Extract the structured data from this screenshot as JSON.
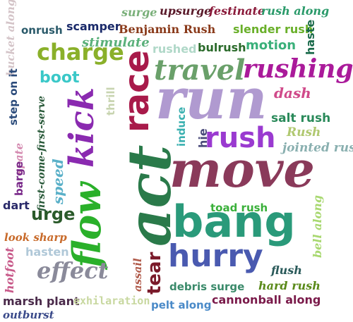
{
  "words": [
    {
      "text": "bucket along",
      "color": "#d4c4c8"
    },
    {
      "text": "surge",
      "color": "#7ab07a"
    },
    {
      "text": "upsurge",
      "color": "#5a1a2a"
    },
    {
      "text": "festinate",
      "color": "#8a1a3a"
    },
    {
      "text": "rush along",
      "color": "#2a9a6a"
    },
    {
      "text": "onrush",
      "color": "#2a5a6a"
    },
    {
      "text": "scamper",
      "color": "#1a2a6a"
    },
    {
      "text": "Benjamin Rush",
      "color": "#8a3a1a"
    },
    {
      "text": "slender rush",
      "color": "#6ab02a"
    },
    {
      "text": "haste",
      "color": "#1a6a4a"
    },
    {
      "text": "stimulate",
      "color": "#5ab07a"
    },
    {
      "text": "charge",
      "color": "#8ab02a"
    },
    {
      "text": "rushed",
      "color": "#b0d8c8"
    },
    {
      "text": "bulrush",
      "color": "#2a6a2a"
    },
    {
      "text": "motion",
      "color": "#3ab07a"
    },
    {
      "text": "rushing",
      "color": "#aa1a9a"
    },
    {
      "text": "boot",
      "color": "#3ac8c8"
    },
    {
      "text": "race",
      "color": "#a81a4a"
    },
    {
      "text": "travel",
      "color": "#6aa06a"
    },
    {
      "text": "step on it",
      "color": "#2a4a7a"
    },
    {
      "text": "kick",
      "color": "#8a2ab0"
    },
    {
      "text": "thrill",
      "color": "#c8d4b0"
    },
    {
      "text": "run",
      "color": "#b09ad0"
    },
    {
      "text": "dash",
      "color": "#d04a8a"
    },
    {
      "text": "first-come-first-serve",
      "color": "#2a5a3a"
    },
    {
      "text": "spate",
      "color": "#d48ab0"
    },
    {
      "text": "induce",
      "color": "#3ab0b0"
    },
    {
      "text": "salt rush",
      "color": "#2a8a5a"
    },
    {
      "text": "hie",
      "color": "#4a4a7a"
    },
    {
      "text": "rush",
      "color": "#9a3ad0"
    },
    {
      "text": "Rush",
      "color": "#b0c870"
    },
    {
      "text": "act",
      "color": "#2a7a4a"
    },
    {
      "text": "jointed rush",
      "color": "#8ab0b0"
    },
    {
      "text": "speed",
      "color": "#5ab0c8"
    },
    {
      "text": "barge",
      "color": "#7a2a8a"
    },
    {
      "text": "move",
      "color": "#8a3a5a"
    },
    {
      "text": "flow",
      "color": "#2ab02a"
    },
    {
      "text": "dart",
      "color": "#2a2a6a"
    },
    {
      "text": "urge",
      "color": "#2a5a2a"
    },
    {
      "text": "toad rush",
      "color": "#3ab03a"
    },
    {
      "text": "bang",
      "color": "#2a9a7a"
    },
    {
      "text": "bell along",
      "color": "#a8d870"
    },
    {
      "text": "look sharp",
      "color": "#c86a2a"
    },
    {
      "text": "hasten",
      "color": "#b0c8d8"
    },
    {
      "text": "hurry",
      "color": "#4a5ab0"
    },
    {
      "text": "hotfoot",
      "color": "#c85a8a"
    },
    {
      "text": "effect",
      "color": "#8a8a9a"
    },
    {
      "text": "assail",
      "color": "#b05a4a"
    },
    {
      "text": "tear",
      "color": "#7a1a2a"
    },
    {
      "text": "flush",
      "color": "#2a5a5a"
    },
    {
      "text": "debris surge",
      "color": "#3a8a6a"
    },
    {
      "text": "hard rush",
      "color": "#5a8a1a"
    },
    {
      "text": "marsh plant",
      "color": "#4a2a4a"
    },
    {
      "text": "exhilaration",
      "color": "#c8d8a0"
    },
    {
      "text": "pelt along",
      "color": "#4a8ac8"
    },
    {
      "text": "cannonball along",
      "color": "#7a1a4a"
    },
    {
      "text": "outburst",
      "color": "#3a4a8a"
    }
  ]
}
